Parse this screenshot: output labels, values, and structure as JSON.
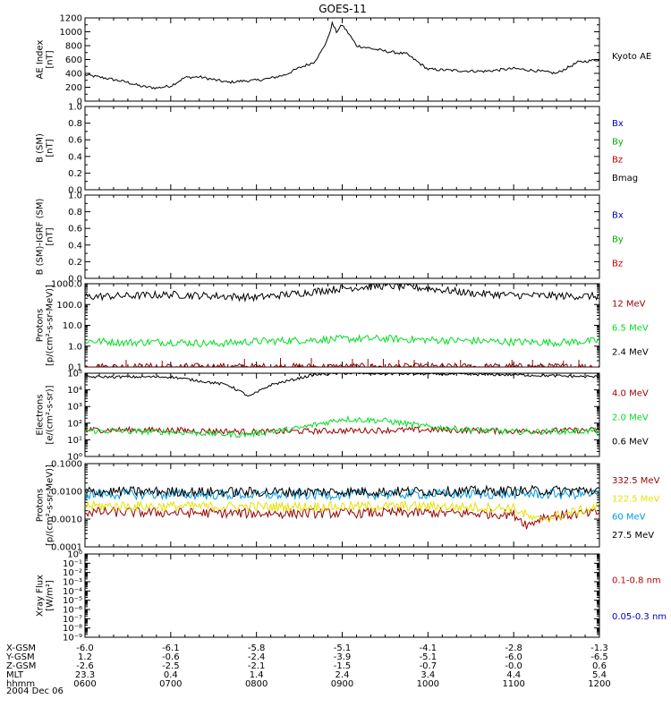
{
  "chart_data": {
    "type": "line",
    "title": "GOES-11",
    "date_label": "2004 Dec 06",
    "x_range": [
      "06:00",
      "12:00"
    ],
    "panels": [
      {
        "id": "ae",
        "ylabel": "AE Index\n[nT]",
        "scale": "linear",
        "ylim": [
          0,
          1200
        ],
        "yticks": [
          "0",
          "200",
          "400",
          "600",
          "800",
          "1000",
          "1200"
        ],
        "series": [
          {
            "name": "Kyoto AE",
            "color": "#000000",
            "t": [
              "06:00",
              "06:15",
              "06:30",
              "06:40",
              "06:50",
              "07:00",
              "07:10",
              "07:20",
              "07:30",
              "07:40",
              "07:50",
              "08:00",
              "08:10",
              "08:20",
              "08:30",
              "08:40",
              "08:45",
              "08:50",
              "08:53",
              "08:56",
              "09:00",
              "09:05",
              "09:10",
              "09:20",
              "09:30",
              "09:45",
              "10:00",
              "10:20",
              "10:40",
              "11:00",
              "11:15",
              "11:30",
              "11:45",
              "12:00"
            ],
            "v": [
              380,
              330,
              270,
              210,
              190,
              220,
              340,
              350,
              310,
              270,
              290,
              300,
              330,
              380,
              480,
              560,
              700,
              900,
              1120,
              1000,
              1100,
              960,
              800,
              760,
              720,
              680,
              460,
              440,
              430,
              470,
              440,
              400,
              560,
              600
            ]
          }
        ]
      },
      {
        "id": "b_sm",
        "ylabel": "B (SM)\n[nT]",
        "scale": "linear",
        "ylim": [
          0,
          1
        ],
        "yticks": [
          "0.0",
          "0.2",
          "0.4",
          "0.6",
          "0.8",
          "1.0"
        ],
        "series": [],
        "legend": [
          {
            "label": "Bx",
            "color": "#0000c0"
          },
          {
            "label": "By",
            "color": "#00b000"
          },
          {
            "label": "Bz",
            "color": "#c00000"
          },
          {
            "label": "Bmag",
            "color": "#000000"
          }
        ]
      },
      {
        "id": "b_igrf",
        "ylabel": "B (SM)-IGRF (SM)\n[nT]",
        "scale": "linear",
        "ylim": [
          0,
          1
        ],
        "yticks": [
          "0.0",
          "0.2",
          "0.4",
          "0.6",
          "0.8",
          "1.0"
        ],
        "series": [],
        "legend": [
          {
            "label": "Bx",
            "color": "#0000c0"
          },
          {
            "label": "By",
            "color": "#00b000"
          },
          {
            "label": "Bz",
            "color": "#c00000"
          }
        ]
      },
      {
        "id": "protons_hi",
        "ylabel": "Protons\n[p/(cm²-s-sr-MeV)]",
        "scale": "log",
        "ylim": [
          0.1,
          1000
        ],
        "yticks": [
          "0.1",
          "1.0",
          "10.0",
          "100.0",
          "1000.0"
        ],
        "series": [
          {
            "name": "12 MeV",
            "color": "#9a0000",
            "t": [
              "06:00",
              "08:50",
              "09:30",
              "10:30",
              "12:00"
            ],
            "v": [
              0.1,
              0.1,
              0.1,
              0.1,
              0.1
            ]
          },
          {
            "name": "6.5 MeV",
            "color": "#00dd22",
            "t": [
              "06:00",
              "06:30",
              "07:00",
              "07:30",
              "08:00",
              "08:30",
              "09:00",
              "09:30",
              "10:00",
              "10:30",
              "11:00",
              "11:30",
              "12:00"
            ],
            "v": [
              1.8,
              1.5,
              1.6,
              1.3,
              1.7,
              1.9,
              2.2,
              2.3,
              2.0,
              1.8,
              1.6,
              1.5,
              1.8
            ]
          },
          {
            "name": "2.4 MeV",
            "color": "#000000",
            "t": [
              "06:00",
              "06:30",
              "07:00",
              "07:30",
              "08:00",
              "08:30",
              "09:00",
              "09:30",
              "10:00",
              "10:30",
              "11:00",
              "11:30",
              "12:00"
            ],
            "v": [
              240,
              260,
              300,
              260,
              220,
              350,
              600,
              800,
              600,
              350,
              280,
              260,
              250
            ]
          }
        ],
        "legend": [
          {
            "label": "12 MeV",
            "color": "#9a0000"
          },
          {
            "label": "6.5 MeV",
            "color": "#00dd22"
          },
          {
            "label": "2.4 MeV",
            "color": "#000000"
          }
        ]
      },
      {
        "id": "electrons",
        "ylabel": "Electrons\n[e/(cm²-s-sr)]",
        "scale": "log",
        "ylim": [
          1,
          100000
        ],
        "yticks": [
          "10⁰",
          "10¹",
          "10²",
          "10³",
          "10⁴",
          "10⁵"
        ],
        "series": [
          {
            "name": "4.0 MeV",
            "color": "#9a0000",
            "t": [
              "06:00",
              "07:00",
              "08:00",
              "09:00",
              "10:00",
              "11:00",
              "12:00"
            ],
            "v": [
              40,
              38,
              30,
              35,
              40,
              33,
              38
            ]
          },
          {
            "name": "2.0 MeV",
            "color": "#00dd22",
            "t": [
              "06:00",
              "07:00",
              "07:50",
              "08:00",
              "08:30",
              "09:00",
              "09:30",
              "10:00",
              "10:30",
              "11:00",
              "12:00"
            ],
            "v": [
              35,
              30,
              20,
              25,
              50,
              180,
              140,
              60,
              40,
              30,
              35
            ]
          },
          {
            "name": "0.6 MeV",
            "color": "#000000",
            "t": [
              "06:00",
              "07:00",
              "07:40",
              "07:55",
              "08:10",
              "08:40",
              "09:00",
              "10:00",
              "11:00",
              "12:00"
            ],
            "v": [
              60000,
              60000,
              20000,
              4000,
              20000,
              80000,
              100000,
              90000,
              80000,
              60000
            ]
          }
        ],
        "legend": [
          {
            "label": "4.0 MeV",
            "color": "#9a0000"
          },
          {
            "label": "2.0 MeV",
            "color": "#00dd22"
          },
          {
            "label": "0.6 MeV",
            "color": "#000000"
          }
        ]
      },
      {
        "id": "protons_lo",
        "ylabel": "Protons\n[p/(cm²-s-sr-MeV)]",
        "scale": "log",
        "ylim": [
          0.0001,
          0.1
        ],
        "yticks": [
          "0.0001",
          "0.0010",
          "0.0100",
          "0.1000"
        ],
        "series": [
          {
            "name": "332.5 MeV",
            "color": "#9a0000",
            "t": [
              "06:00",
              "08:00",
              "10:00",
              "11:00",
              "11:10",
              "11:20",
              "12:00"
            ],
            "v": [
              0.0018,
              0.0016,
              0.0017,
              0.0015,
              0.0006,
              0.0012,
              0.0017
            ]
          },
          {
            "name": "122.5 MeV",
            "color": "#e8e000",
            "t": [
              "06:00",
              "08:00",
              "10:00",
              "11:00",
              "11:15",
              "12:00"
            ],
            "v": [
              0.003,
              0.0028,
              0.0029,
              0.0025,
              0.0009,
              0.0028
            ]
          },
          {
            "name": "60 MeV",
            "color": "#0099dd",
            "t": [
              "06:00",
              "08:00",
              "10:00",
              "12:00"
            ],
            "v": [
              0.008,
              0.0075,
              0.008,
              0.008
            ]
          },
          {
            "name": "27.5 MeV",
            "color": "#000000",
            "t": [
              "06:00",
              "08:00",
              "10:00",
              "12:00"
            ],
            "v": [
              0.01,
              0.0095,
              0.01,
              0.011
            ]
          }
        ],
        "legend": [
          {
            "label": "332.5 MeV",
            "color": "#9a0000"
          },
          {
            "label": "122.5 MeV",
            "color": "#e8e000"
          },
          {
            "label": "60 MeV",
            "color": "#0099dd"
          },
          {
            "label": "27.5 MeV",
            "color": "#000000"
          }
        ]
      },
      {
        "id": "xray",
        "ylabel": "Xray Flux\n[W/m²]",
        "scale": "log",
        "ylim": [
          1e-09,
          1
        ],
        "yticks": [
          "10⁻⁹",
          "10⁻⁸",
          "10⁻⁷",
          "10⁻⁶",
          "10⁻⁵",
          "10⁻⁴",
          "10⁻³",
          "10⁻²",
          "10⁻¹",
          "10⁰"
        ],
        "series": [],
        "legend": [
          {
            "label": "0.1-0.8 nm",
            "color": "#c00000"
          },
          {
            "label": "0.05-0.3 nm",
            "color": "#0000c0"
          }
        ]
      }
    ],
    "ae_label": "Kyoto AE",
    "ephemeris": {
      "row_labels": [
        "X-GSM",
        "Y-GSM",
        "Z-GSM",
        "MLT",
        "hhmm"
      ],
      "columns": [
        [
          "-6.0",
          "1.2",
          "-2.6",
          "23.3",
          "0600"
        ],
        [
          "-6.1",
          "-0.6",
          "-2.5",
          "0.4",
          "0700"
        ],
        [
          "-5.8",
          "-2.4",
          "-2.1",
          "1.4",
          "0800"
        ],
        [
          "-5.1",
          "-3.9",
          "-1.5",
          "2.4",
          "0900"
        ],
        [
          "-4.1",
          "-5.1",
          "-0.7",
          "3.4",
          "1000"
        ],
        [
          "-2.8",
          "-6.0",
          "-0.0",
          "4.4",
          "1100"
        ],
        [
          "-1.3",
          "-6.5",
          "0.6",
          "5.4",
          "1200"
        ]
      ]
    }
  }
}
